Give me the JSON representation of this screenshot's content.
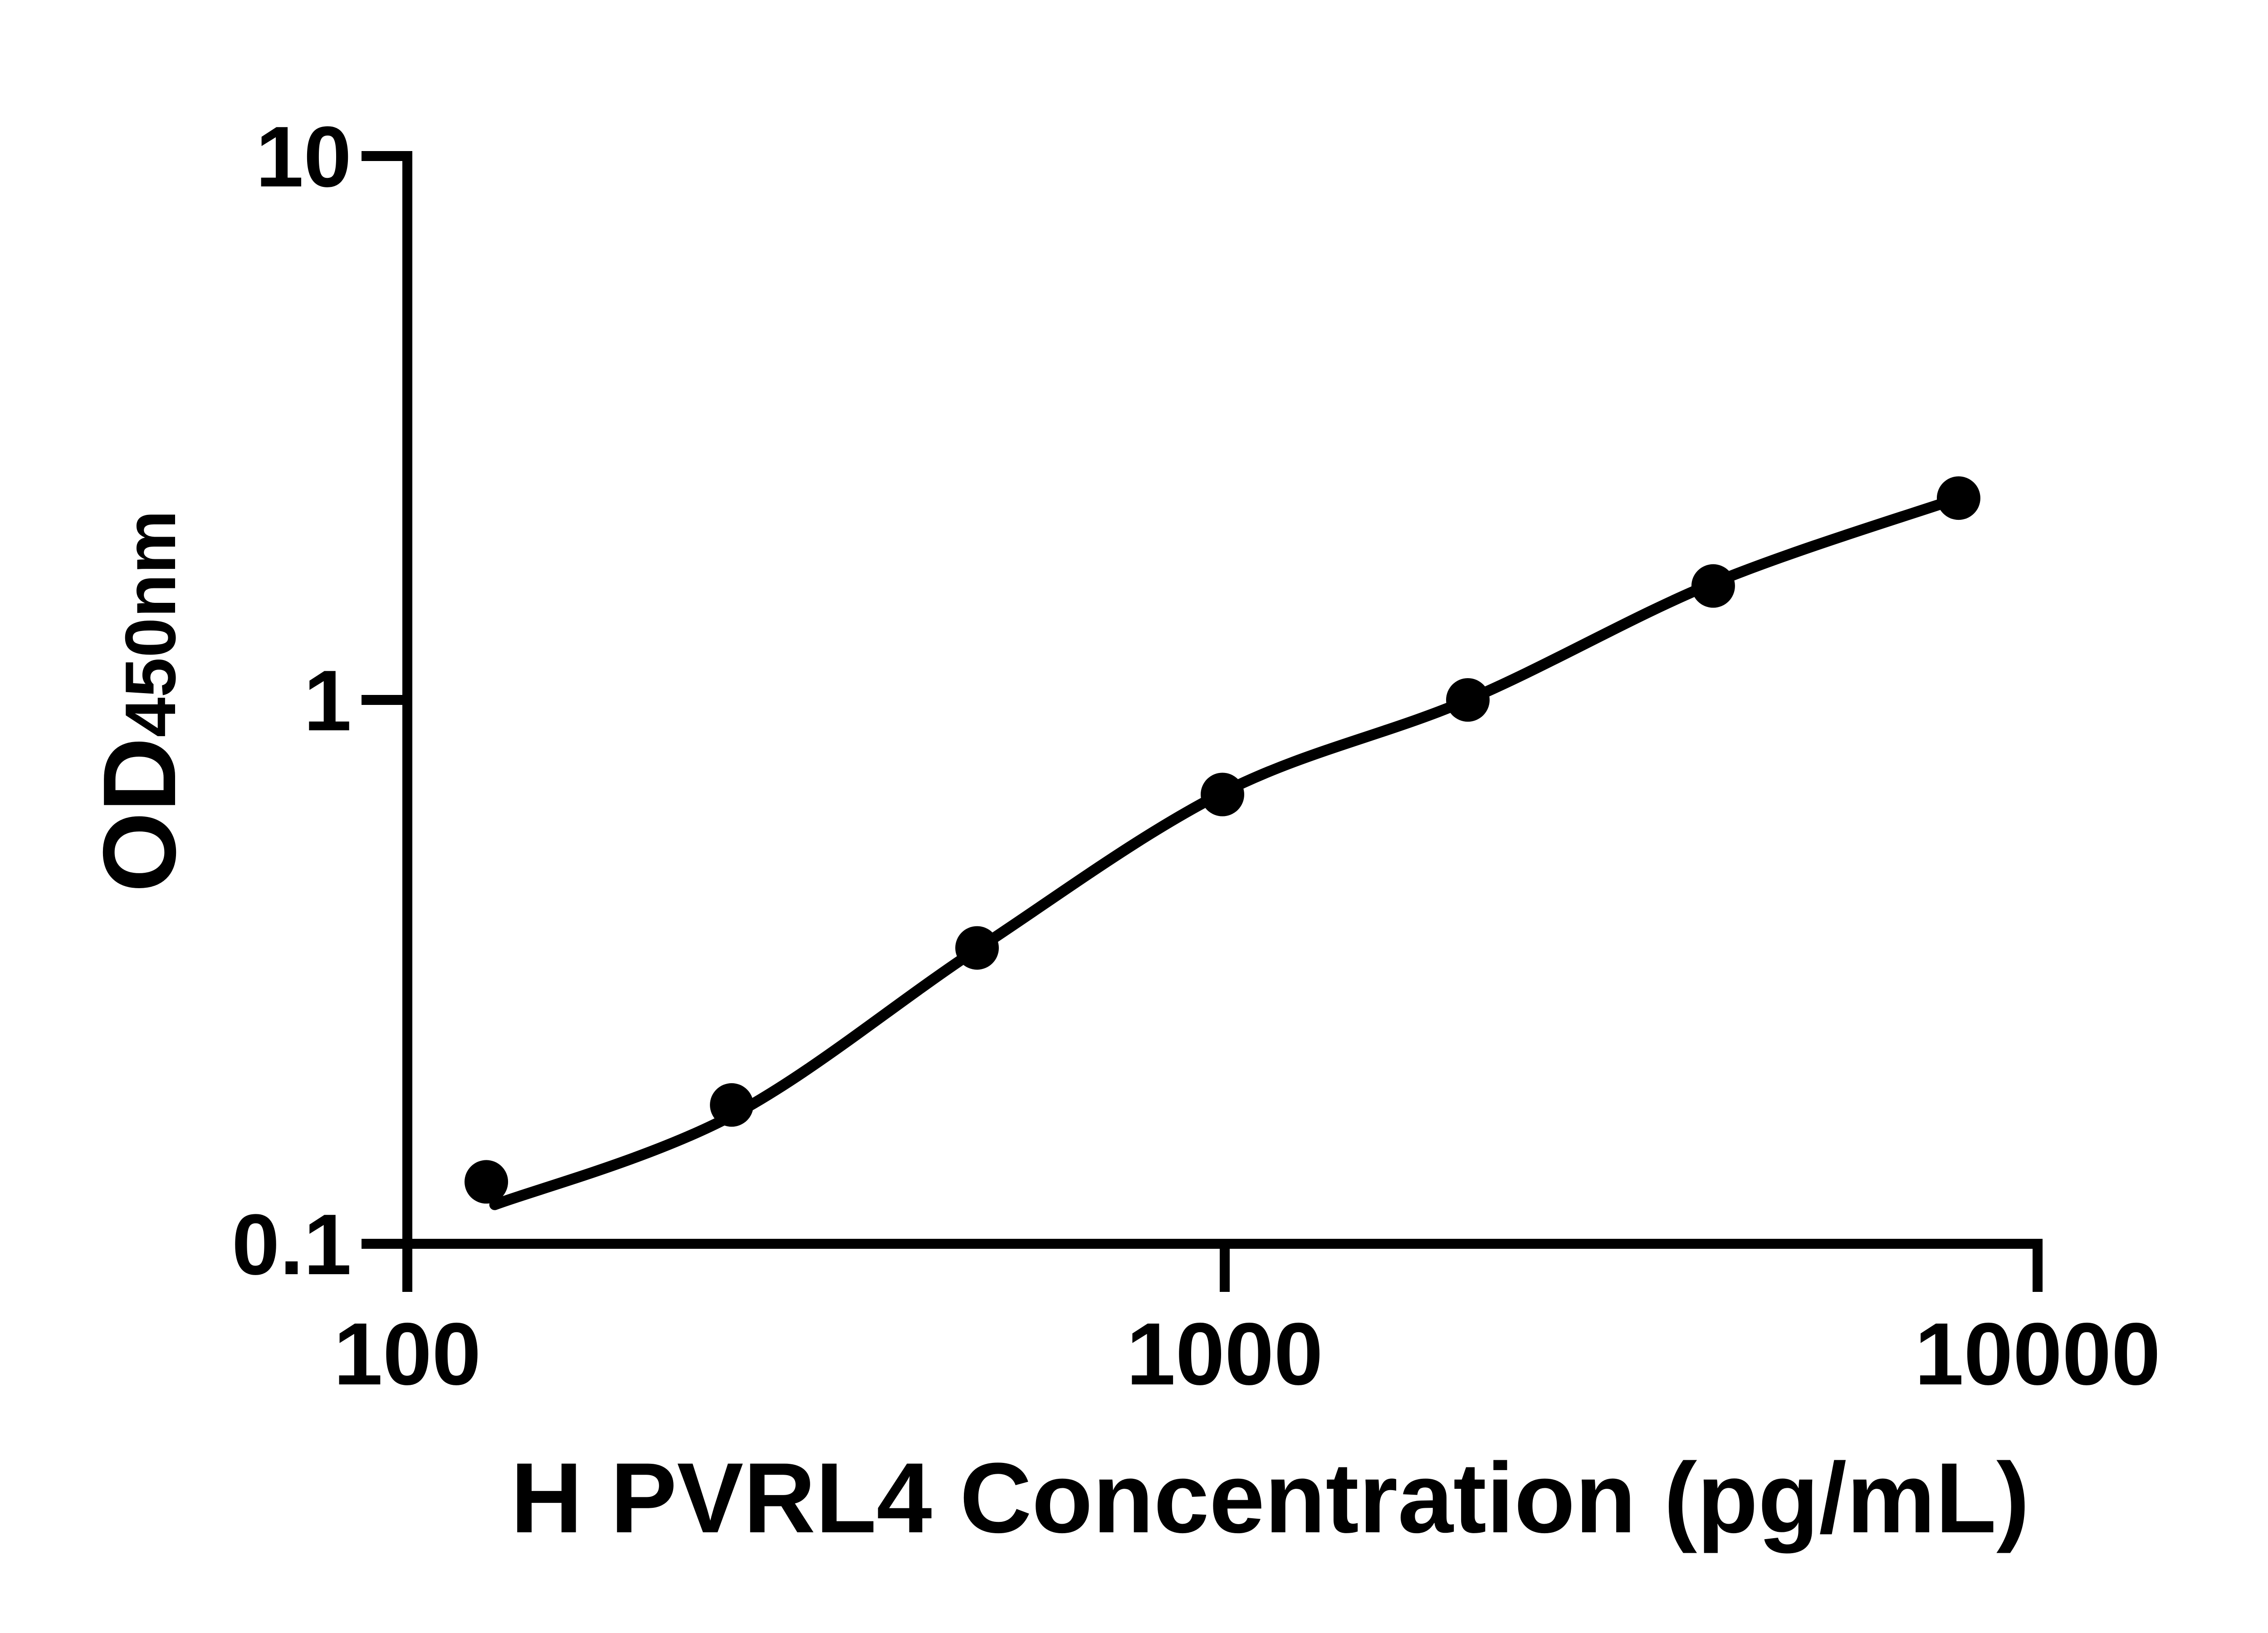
{
  "figure": {
    "background": "#ffffff",
    "ink_color": "#000000"
  },
  "chart_data": {
    "type": "scatter",
    "title": "",
    "xlabel": "H PVRL4 Concentration (pg/mL)",
    "ylabel": "OD450nm",
    "ylabel_parts": {
      "base": "OD",
      "sub": "450nm"
    },
    "x_scale": "log",
    "y_scale": "log",
    "xlim": [
      100,
      10000
    ],
    "ylim": [
      0.1,
      10
    ],
    "x_ticks": [
      "100",
      "1000",
      "10000"
    ],
    "y_ticks": [
      "10",
      "1",
      "0.1"
    ],
    "grid": "off",
    "legend": "none",
    "marker_color": "#000000",
    "line_color": "#000000",
    "points": {
      "x": [
        125,
        250,
        500,
        1000,
        2000,
        4000,
        8000
      ],
      "y": [
        0.13,
        0.18,
        0.35,
        0.67,
        1.0,
        1.62,
        2.35
      ]
    },
    "fit_curve": [
      [
        128,
        0.118
      ],
      [
        250,
        0.172
      ],
      [
        500,
        0.348
      ],
      [
        1000,
        0.675
      ],
      [
        2000,
        1.0
      ],
      [
        4000,
        1.64
      ],
      [
        8000,
        2.35
      ]
    ]
  }
}
